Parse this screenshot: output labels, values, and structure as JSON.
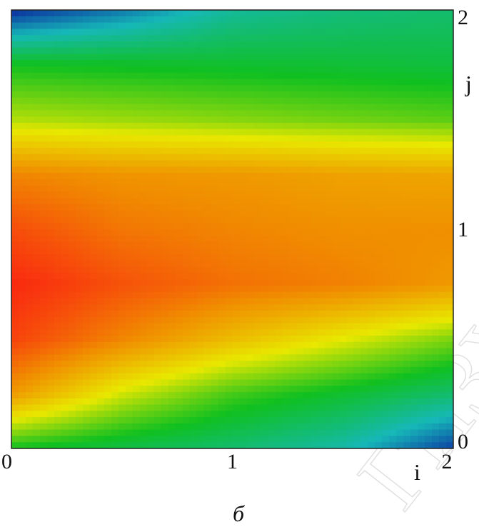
{
  "caption": "б",
  "watermark": "ГИЗУ",
  "chart_data": {
    "type": "heatmap",
    "title": "",
    "xlabel": "i",
    "ylabel": "j",
    "xlim": [
      0,
      2
    ],
    "ylim": [
      0,
      2
    ],
    "x_ticks": [
      "0",
      "1",
      "2"
    ],
    "y_ticks": [
      "0",
      "1",
      "2"
    ],
    "x_ticks_position": "bottom",
    "y_ticks_position": "right",
    "grid": false,
    "legend": "none",
    "colormap": [
      "#0a1a9c",
      "#16b8b8",
      "#10c020",
      "#e8e800",
      "#f09000",
      "#fa2810"
    ],
    "x": [
      0,
      0.5,
      1,
      1.5,
      2
    ],
    "y": [
      0,
      0.25,
      0.5,
      0.75,
      1,
      1.25,
      1.5,
      1.75,
      2
    ],
    "values": [
      [
        0.4,
        0.35,
        0.3,
        0.22,
        0.05
      ],
      [
        0.78,
        0.58,
        0.45,
        0.38,
        0.3
      ],
      [
        0.95,
        0.82,
        0.7,
        0.6,
        0.5
      ],
      [
        1.0,
        0.92,
        0.86,
        0.83,
        0.78
      ],
      [
        0.93,
        0.85,
        0.82,
        0.8,
        0.8
      ],
      [
        0.82,
        0.79,
        0.78,
        0.76,
        0.75
      ],
      [
        0.55,
        0.53,
        0.51,
        0.49,
        0.47
      ],
      [
        0.4,
        0.39,
        0.38,
        0.37,
        0.36
      ],
      [
        0.02,
        0.12,
        0.24,
        0.28,
        0.3
      ]
    ]
  }
}
